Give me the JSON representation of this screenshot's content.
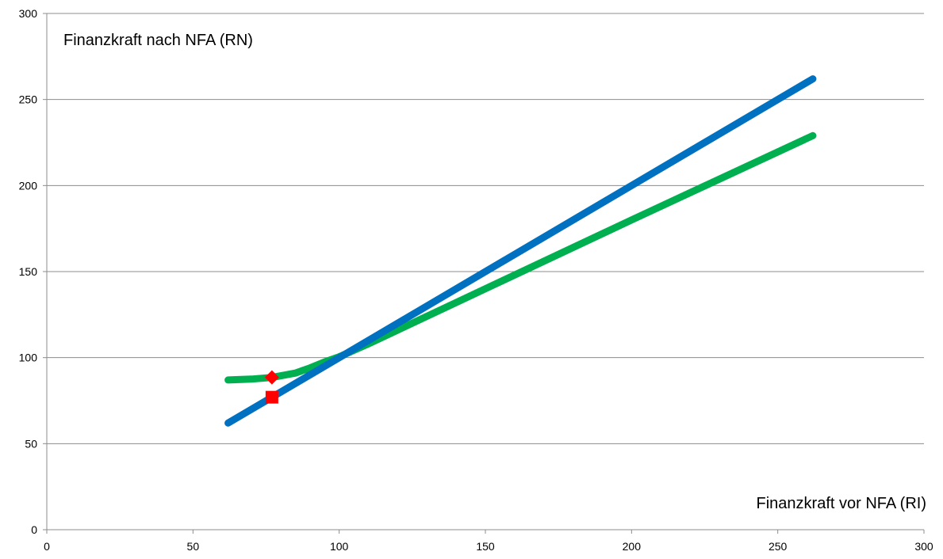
{
  "chart_data": {
    "type": "line",
    "title": "",
    "xlabel": "Finanzkraft vor NFA (RI)",
    "ylabel": "Finanzkraft nach NFA (RN)",
    "xlim": [
      0,
      300
    ],
    "ylim": [
      0,
      300
    ],
    "xticks": [
      0,
      50,
      100,
      150,
      200,
      250,
      300
    ],
    "yticks": [
      0,
      50,
      100,
      150,
      200,
      250,
      300
    ],
    "grid": {
      "horizontal": true,
      "vertical": false
    },
    "legend": "none",
    "series": [
      {
        "color": "#0070c0",
        "x": [
          62,
          262
        ],
        "y": [
          62,
          262
        ]
      },
      {
        "color": "#00b050",
        "x": [
          62,
          70,
          77,
          85,
          90,
          95,
          100,
          110,
          120,
          150,
          200,
          262
        ],
        "y": [
          87,
          87.5,
          88.5,
          91,
          94,
          97.5,
          100.5,
          108,
          116,
          140,
          180,
          229
        ]
      }
    ],
    "markers": [
      {
        "shape": "diamond",
        "color": "#ff0000",
        "x": 77,
        "y": 88.5
      },
      {
        "shape": "square",
        "color": "#ff0000",
        "x": 77,
        "y": 77
      }
    ]
  }
}
